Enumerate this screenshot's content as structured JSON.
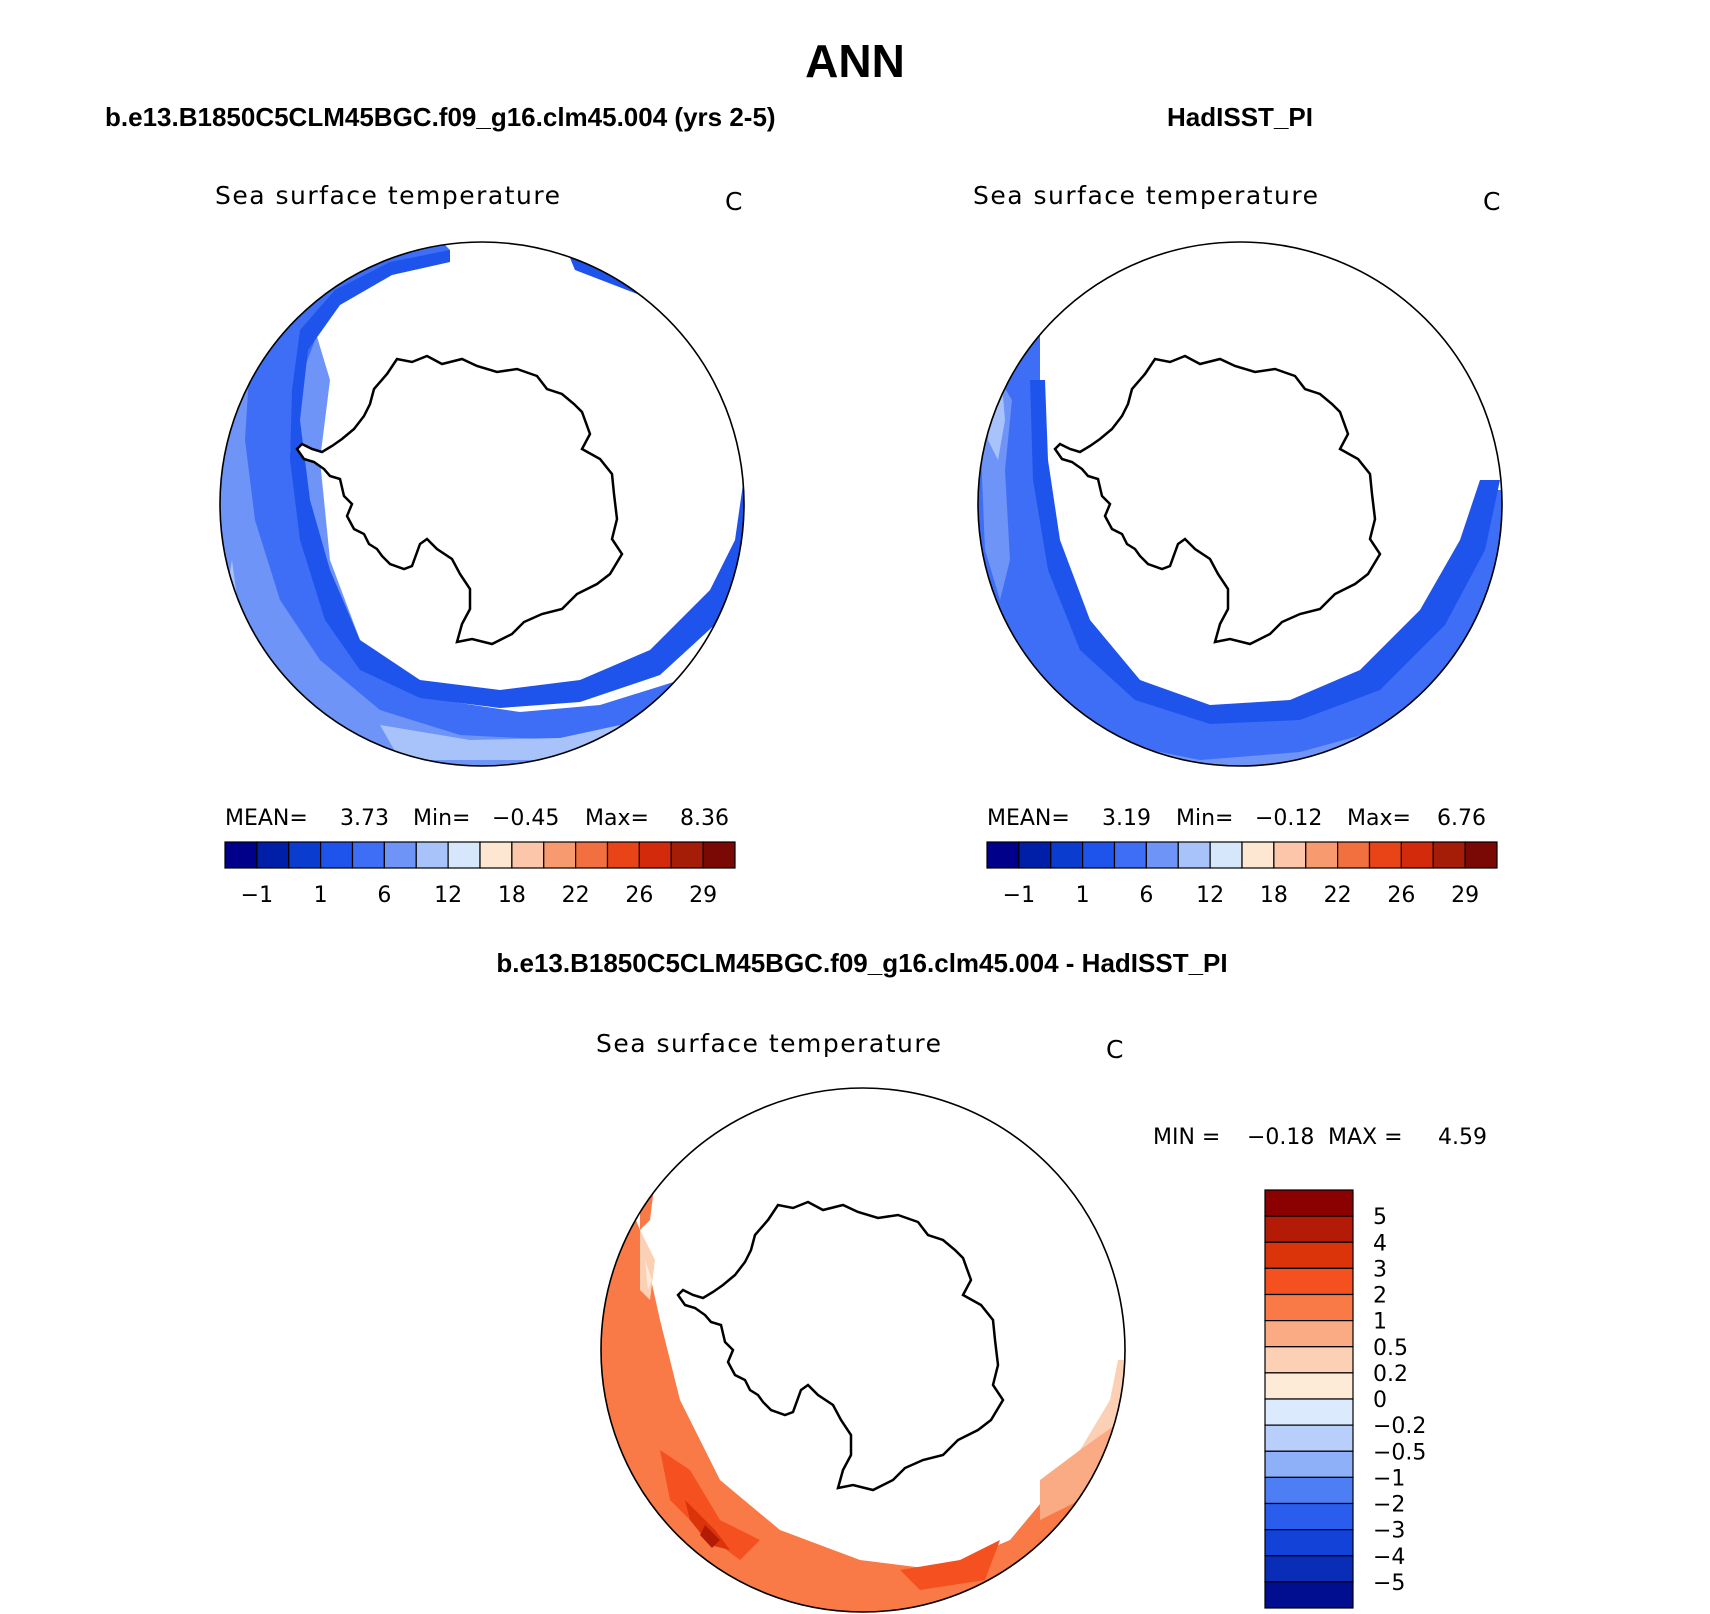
{
  "chart_data": {
    "title": "ANN",
    "panels": [
      {
        "id": "model",
        "type": "heatmap",
        "projection": "south-polar-stereographic",
        "case_title": "b.e13.B1850C5CLM45BGC.f09_g16.clm45.004 (yrs 2-5)",
        "field": "Sea surface temperature",
        "units": "C",
        "stats_text": {
          "mean_label": "MEAN=",
          "mean": "3.73",
          "min_label": "Min=",
          "min": "−0.45",
          "max_label": "Max=",
          "max": "8.36"
        },
        "colorbar": {
          "orientation": "horizontal",
          "colors": [
            "#00008b",
            "#001fa8",
            "#0a3ccf",
            "#1e54eb",
            "#3d6ef5",
            "#6e94f7",
            "#a8c2fa",
            "#d6e6fb",
            "#fde6d2",
            "#fbc6a9",
            "#f89a6f",
            "#f2703f",
            "#e84418",
            "#d22a0b",
            "#a51c07",
            "#7a0805"
          ],
          "tick_labels": [
            "−1",
            "1",
            "6",
            "12",
            "18",
            "22",
            "26",
            "29"
          ]
        }
      },
      {
        "id": "obs",
        "type": "heatmap",
        "projection": "south-polar-stereographic",
        "case_title": "HadISST_PI",
        "field": "Sea surface temperature",
        "units": "C",
        "stats_text": {
          "mean_label": "MEAN=",
          "mean": "3.19",
          "min_label": "Min=",
          "min": "−0.12",
          "max_label": "Max=",
          "max": "6.76"
        },
        "colorbar": {
          "orientation": "horizontal",
          "colors": [
            "#00008b",
            "#001fa8",
            "#0a3ccf",
            "#1e54eb",
            "#3d6ef5",
            "#6e94f7",
            "#a8c2fa",
            "#d6e6fb",
            "#fde6d2",
            "#fbc6a9",
            "#f89a6f",
            "#f2703f",
            "#e84418",
            "#d22a0b",
            "#a51c07",
            "#7a0805"
          ],
          "tick_labels": [
            "−1",
            "1",
            "6",
            "12",
            "18",
            "22",
            "26",
            "29"
          ]
        }
      },
      {
        "id": "diff",
        "type": "heatmap",
        "projection": "south-polar-stereographic",
        "case_title": "b.e13.B1850C5CLM45BGC.f09_g16.clm45.004 - HadISST_PI",
        "field": "Sea surface temperature",
        "units": "C",
        "stats_text": {
          "min_label": "MIN =",
          "min": "−0.18",
          "max_label": "MAX =",
          "max": "4.59"
        },
        "colorbar": {
          "orientation": "vertical",
          "colors_top_to_bottom": [
            "#8b0000",
            "#b31b06",
            "#dc340a",
            "#f5501f",
            "#f97a47",
            "#fbab83",
            "#fcd0b4",
            "#fdebd8",
            "#dbeafc",
            "#b8cffb",
            "#8eb0f9",
            "#4e7ef4",
            "#2a5ced",
            "#1242d8",
            "#0a2db8",
            "#000e8f"
          ],
          "tick_labels": [
            "5",
            "4",
            "3",
            "2",
            "1",
            "0.5",
            "0.2",
            "0",
            "−0.2",
            "−0.5",
            "−1",
            "−2",
            "−3",
            "−4",
            "−5"
          ]
        }
      }
    ]
  }
}
